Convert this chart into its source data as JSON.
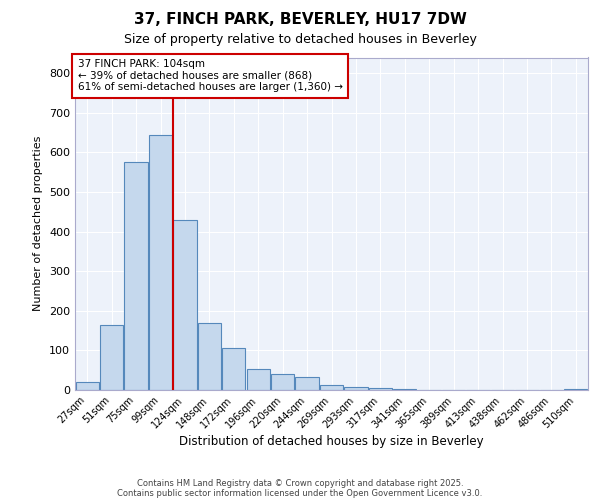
{
  "title": "37, FINCH PARK, BEVERLEY, HU17 7DW",
  "subtitle": "Size of property relative to detached houses in Beverley",
  "xlabel": "Distribution of detached houses by size in Beverley",
  "ylabel": "Number of detached properties",
  "categories": [
    "27sqm",
    "51sqm",
    "75sqm",
    "99sqm",
    "124sqm",
    "148sqm",
    "172sqm",
    "196sqm",
    "220sqm",
    "244sqm",
    "269sqm",
    "293sqm",
    "317sqm",
    "341sqm",
    "365sqm",
    "389sqm",
    "413sqm",
    "438sqm",
    "462sqm",
    "486sqm",
    "510sqm"
  ],
  "values": [
    20,
    165,
    575,
    645,
    430,
    170,
    105,
    52,
    40,
    32,
    13,
    8,
    4,
    2,
    1,
    1,
    0,
    0,
    0,
    0,
    3
  ],
  "bar_color": "#c5d8ed",
  "bar_edge_color": "#5588bb",
  "annotation_box_text": "37 FINCH PARK: 104sqm\n← 39% of detached houses are smaller (868)\n61% of semi-detached houses are larger (1,360) →",
  "annotation_box_color": "#cc0000",
  "vline_x_index": 3,
  "vline_color": "#cc0000",
  "ylim": [
    0,
    840
  ],
  "yticks": [
    0,
    100,
    200,
    300,
    400,
    500,
    600,
    700,
    800
  ],
  "background_color": "#ffffff",
  "plot_bg_color": "#edf2fa",
  "grid_color": "#ffffff",
  "footer_line1": "Contains HM Land Registry data © Crown copyright and database right 2025.",
  "footer_line2": "Contains public sector information licensed under the Open Government Licence v3.0."
}
